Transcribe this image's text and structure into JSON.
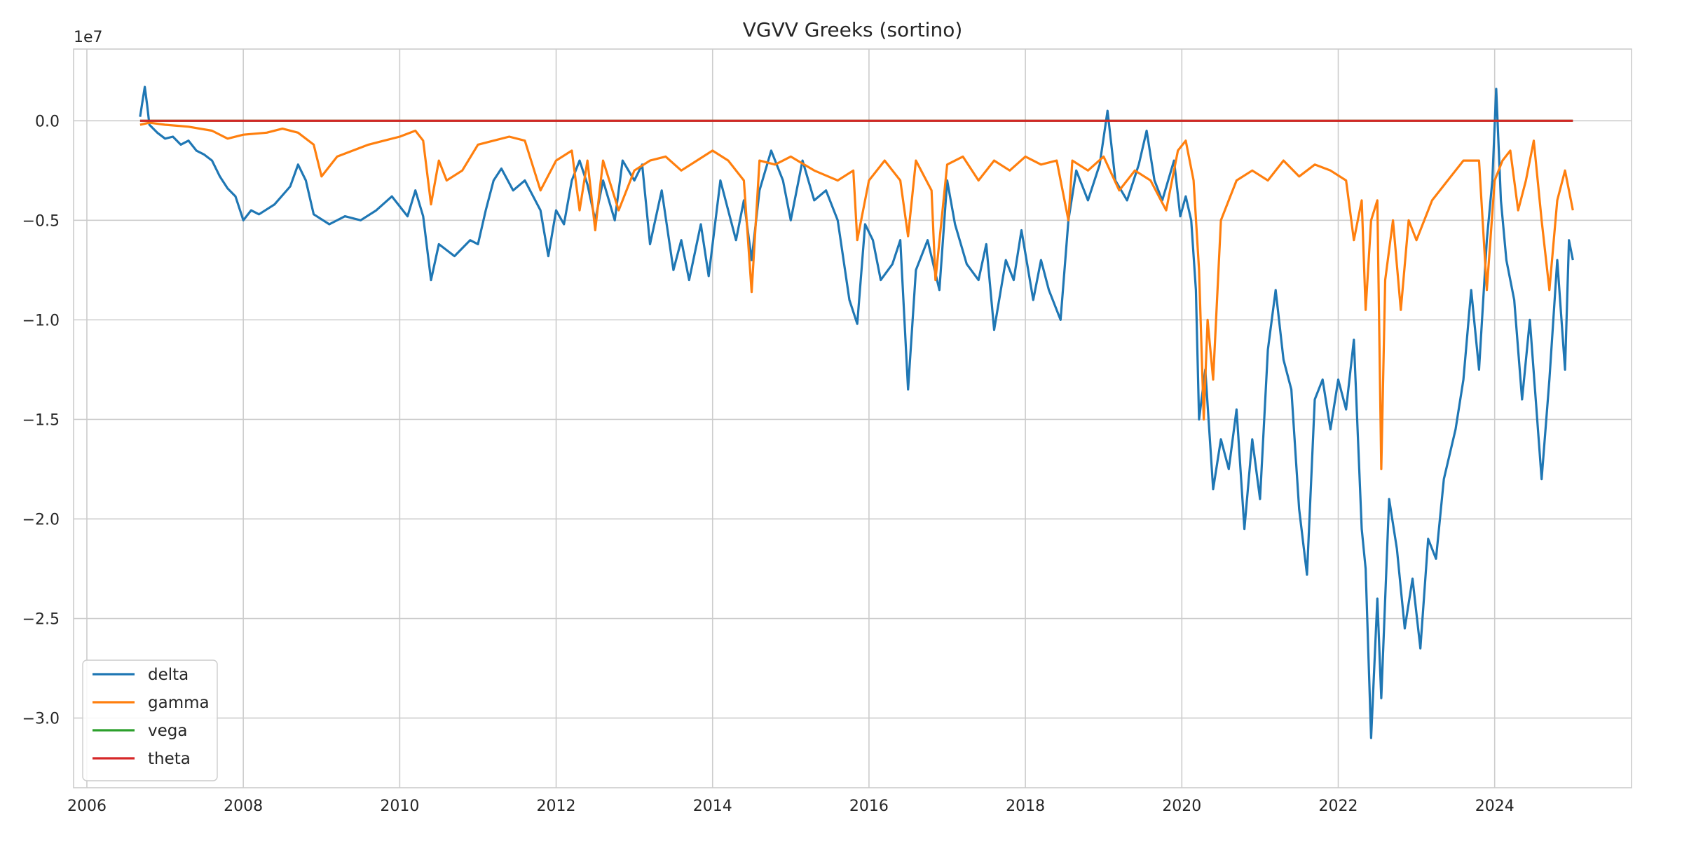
{
  "chart_data": {
    "type": "line",
    "title": "VGVV Greeks (sortino)",
    "xlabel": "",
    "ylabel": "",
    "y_scale_note": "1e7",
    "xlim": [
      2005.83,
      2025.75
    ],
    "ylim": [
      -3.35,
      0.36
    ],
    "x_ticks": [
      2006,
      2008,
      2010,
      2012,
      2014,
      2016,
      2018,
      2020,
      2022,
      2024
    ],
    "x_tick_labels": [
      "2006",
      "2008",
      "2010",
      "2012",
      "2014",
      "2016",
      "2018",
      "2020",
      "2022",
      "2024"
    ],
    "y_ticks": [
      0.0,
      -0.5,
      -1.0,
      -1.5,
      -2.0,
      -2.5,
      -3.0
    ],
    "y_tick_labels": [
      "0.0",
      "−0.5",
      "−1.0",
      "−1.5",
      "−2.0",
      "−2.5",
      "−3.0"
    ],
    "grid": true,
    "legend_position": "bottom-left",
    "series": [
      {
        "name": "delta",
        "color": "#1f77b4",
        "points": [
          [
            2006.68,
            0.02
          ],
          [
            2006.72,
            0.12
          ],
          [
            2006.74,
            0.17
          ],
          [
            2006.77,
            0.08
          ],
          [
            2006.8,
            -0.02
          ],
          [
            2006.9,
            -0.06
          ],
          [
            2007.0,
            -0.09
          ],
          [
            2007.1,
            -0.08
          ],
          [
            2007.2,
            -0.12
          ],
          [
            2007.3,
            -0.1
          ],
          [
            2007.4,
            -0.15
          ],
          [
            2007.5,
            -0.17
          ],
          [
            2007.6,
            -0.2
          ],
          [
            2007.7,
            -0.28
          ],
          [
            2007.8,
            -0.34
          ],
          [
            2007.9,
            -0.38
          ],
          [
            2008.0,
            -0.5
          ],
          [
            2008.1,
            -0.45
          ],
          [
            2008.2,
            -0.47
          ],
          [
            2008.4,
            -0.42
          ],
          [
            2008.6,
            -0.33
          ],
          [
            2008.7,
            -0.22
          ],
          [
            2008.8,
            -0.3
          ],
          [
            2008.9,
            -0.47
          ],
          [
            2009.1,
            -0.52
          ],
          [
            2009.3,
            -0.48
          ],
          [
            2009.5,
            -0.5
          ],
          [
            2009.7,
            -0.45
          ],
          [
            2009.9,
            -0.38
          ],
          [
            2010.1,
            -0.48
          ],
          [
            2010.2,
            -0.35
          ],
          [
            2010.3,
            -0.48
          ],
          [
            2010.4,
            -0.8
          ],
          [
            2010.5,
            -0.62
          ],
          [
            2010.7,
            -0.68
          ],
          [
            2010.9,
            -0.6
          ],
          [
            2011.0,
            -0.62
          ],
          [
            2011.1,
            -0.45
          ],
          [
            2011.2,
            -0.3
          ],
          [
            2011.3,
            -0.24
          ],
          [
            2011.45,
            -0.35
          ],
          [
            2011.6,
            -0.3
          ],
          [
            2011.8,
            -0.45
          ],
          [
            2011.9,
            -0.68
          ],
          [
            2012.0,
            -0.45
          ],
          [
            2012.1,
            -0.52
          ],
          [
            2012.2,
            -0.3
          ],
          [
            2012.3,
            -0.2
          ],
          [
            2012.4,
            -0.32
          ],
          [
            2012.5,
            -0.5
          ],
          [
            2012.6,
            -0.3
          ],
          [
            2012.75,
            -0.5
          ],
          [
            2012.85,
            -0.2
          ],
          [
            2013.0,
            -0.3
          ],
          [
            2013.1,
            -0.22
          ],
          [
            2013.2,
            -0.62
          ],
          [
            2013.35,
            -0.35
          ],
          [
            2013.5,
            -0.75
          ],
          [
            2013.6,
            -0.6
          ],
          [
            2013.7,
            -0.8
          ],
          [
            2013.85,
            -0.52
          ],
          [
            2013.95,
            -0.78
          ],
          [
            2014.1,
            -0.3
          ],
          [
            2014.3,
            -0.6
          ],
          [
            2014.4,
            -0.4
          ],
          [
            2014.5,
            -0.7
          ],
          [
            2014.6,
            -0.35
          ],
          [
            2014.75,
            -0.15
          ],
          [
            2014.9,
            -0.3
          ],
          [
            2015.0,
            -0.5
          ],
          [
            2015.15,
            -0.2
          ],
          [
            2015.3,
            -0.4
          ],
          [
            2015.45,
            -0.35
          ],
          [
            2015.6,
            -0.5
          ],
          [
            2015.75,
            -0.9
          ],
          [
            2015.85,
            -1.02
          ],
          [
            2015.95,
            -0.52
          ],
          [
            2016.05,
            -0.6
          ],
          [
            2016.15,
            -0.8
          ],
          [
            2016.3,
            -0.72
          ],
          [
            2016.4,
            -0.6
          ],
          [
            2016.5,
            -1.35
          ],
          [
            2016.6,
            -0.75
          ],
          [
            2016.75,
            -0.6
          ],
          [
            2016.9,
            -0.85
          ],
          [
            2017.0,
            -0.3
          ],
          [
            2017.1,
            -0.52
          ],
          [
            2017.25,
            -0.72
          ],
          [
            2017.4,
            -0.8
          ],
          [
            2017.5,
            -0.62
          ],
          [
            2017.6,
            -1.05
          ],
          [
            2017.75,
            -0.7
          ],
          [
            2017.85,
            -0.8
          ],
          [
            2017.95,
            -0.55
          ],
          [
            2018.1,
            -0.9
          ],
          [
            2018.2,
            -0.7
          ],
          [
            2018.3,
            -0.85
          ],
          [
            2018.45,
            -1.0
          ],
          [
            2018.55,
            -0.5
          ],
          [
            2018.65,
            -0.25
          ],
          [
            2018.8,
            -0.4
          ],
          [
            2018.95,
            -0.22
          ],
          [
            2019.05,
            0.05
          ],
          [
            2019.15,
            -0.3
          ],
          [
            2019.3,
            -0.4
          ],
          [
            2019.45,
            -0.22
          ],
          [
            2019.55,
            -0.05
          ],
          [
            2019.65,
            -0.3
          ],
          [
            2019.75,
            -0.4
          ],
          [
            2019.9,
            -0.2
          ],
          [
            2019.98,
            -0.48
          ],
          [
            2020.05,
            -0.38
          ],
          [
            2020.12,
            -0.5
          ],
          [
            2020.18,
            -0.85
          ],
          [
            2020.22,
            -1.5
          ],
          [
            2020.3,
            -1.25
          ],
          [
            2020.4,
            -1.85
          ],
          [
            2020.5,
            -1.6
          ],
          [
            2020.6,
            -1.75
          ],
          [
            2020.7,
            -1.45
          ],
          [
            2020.8,
            -2.05
          ],
          [
            2020.9,
            -1.6
          ],
          [
            2021.0,
            -1.9
          ],
          [
            2021.1,
            -1.15
          ],
          [
            2021.2,
            -0.85
          ],
          [
            2021.3,
            -1.2
          ],
          [
            2021.4,
            -1.35
          ],
          [
            2021.5,
            -1.95
          ],
          [
            2021.6,
            -2.28
          ],
          [
            2021.7,
            -1.4
          ],
          [
            2021.8,
            -1.3
          ],
          [
            2021.9,
            -1.55
          ],
          [
            2022.0,
            -1.3
          ],
          [
            2022.1,
            -1.45
          ],
          [
            2022.2,
            -1.1
          ],
          [
            2022.3,
            -2.05
          ],
          [
            2022.35,
            -2.25
          ],
          [
            2022.42,
            -3.1
          ],
          [
            2022.5,
            -2.4
          ],
          [
            2022.55,
            -2.9
          ],
          [
            2022.65,
            -1.9
          ],
          [
            2022.75,
            -2.15
          ],
          [
            2022.85,
            -2.55
          ],
          [
            2022.95,
            -2.3
          ],
          [
            2023.05,
            -2.65
          ],
          [
            2023.15,
            -2.1
          ],
          [
            2023.25,
            -2.2
          ],
          [
            2023.35,
            -1.8
          ],
          [
            2023.5,
            -1.55
          ],
          [
            2023.6,
            -1.3
          ],
          [
            2023.7,
            -0.85
          ],
          [
            2023.8,
            -1.25
          ],
          [
            2023.9,
            -0.6
          ],
          [
            2023.97,
            -0.3
          ],
          [
            2024.02,
            0.16
          ],
          [
            2024.08,
            -0.4
          ],
          [
            2024.15,
            -0.7
          ],
          [
            2024.25,
            -0.9
          ],
          [
            2024.35,
            -1.4
          ],
          [
            2024.45,
            -1.0
          ],
          [
            2024.6,
            -1.8
          ],
          [
            2024.7,
            -1.3
          ],
          [
            2024.8,
            -0.7
          ],
          [
            2024.9,
            -1.25
          ],
          [
            2024.95,
            -0.6
          ],
          [
            2025.0,
            -0.7
          ]
        ]
      },
      {
        "name": "gamma",
        "color": "#ff7f0e",
        "points": [
          [
            2006.68,
            -0.02
          ],
          [
            2006.8,
            -0.01
          ],
          [
            2007.0,
            -0.02
          ],
          [
            2007.3,
            -0.03
          ],
          [
            2007.6,
            -0.05
          ],
          [
            2007.8,
            -0.09
          ],
          [
            2008.0,
            -0.07
          ],
          [
            2008.3,
            -0.06
          ],
          [
            2008.5,
            -0.04
          ],
          [
            2008.7,
            -0.06
          ],
          [
            2008.9,
            -0.12
          ],
          [
            2009.0,
            -0.28
          ],
          [
            2009.2,
            -0.18
          ],
          [
            2009.4,
            -0.15
          ],
          [
            2009.6,
            -0.12
          ],
          [
            2009.8,
            -0.1
          ],
          [
            2010.0,
            -0.08
          ],
          [
            2010.2,
            -0.05
          ],
          [
            2010.3,
            -0.1
          ],
          [
            2010.4,
            -0.42
          ],
          [
            2010.5,
            -0.2
          ],
          [
            2010.6,
            -0.3
          ],
          [
            2010.8,
            -0.25
          ],
          [
            2011.0,
            -0.12
          ],
          [
            2011.2,
            -0.1
          ],
          [
            2011.4,
            -0.08
          ],
          [
            2011.6,
            -0.1
          ],
          [
            2011.8,
            -0.35
          ],
          [
            2012.0,
            -0.2
          ],
          [
            2012.2,
            -0.15
          ],
          [
            2012.3,
            -0.45
          ],
          [
            2012.4,
            -0.2
          ],
          [
            2012.5,
            -0.55
          ],
          [
            2012.6,
            -0.2
          ],
          [
            2012.8,
            -0.45
          ],
          [
            2013.0,
            -0.25
          ],
          [
            2013.2,
            -0.2
          ],
          [
            2013.4,
            -0.18
          ],
          [
            2013.6,
            -0.25
          ],
          [
            2013.8,
            -0.2
          ],
          [
            2014.0,
            -0.15
          ],
          [
            2014.2,
            -0.2
          ],
          [
            2014.4,
            -0.3
          ],
          [
            2014.5,
            -0.86
          ],
          [
            2014.6,
            -0.2
          ],
          [
            2014.8,
            -0.22
          ],
          [
            2015.0,
            -0.18
          ],
          [
            2015.3,
            -0.25
          ],
          [
            2015.6,
            -0.3
          ],
          [
            2015.8,
            -0.25
          ],
          [
            2015.85,
            -0.6
          ],
          [
            2016.0,
            -0.3
          ],
          [
            2016.2,
            -0.2
          ],
          [
            2016.4,
            -0.3
          ],
          [
            2016.5,
            -0.58
          ],
          [
            2016.6,
            -0.2
          ],
          [
            2016.8,
            -0.35
          ],
          [
            2016.85,
            -0.8
          ],
          [
            2017.0,
            -0.22
          ],
          [
            2017.2,
            -0.18
          ],
          [
            2017.4,
            -0.3
          ],
          [
            2017.6,
            -0.2
          ],
          [
            2017.8,
            -0.25
          ],
          [
            2018.0,
            -0.18
          ],
          [
            2018.2,
            -0.22
          ],
          [
            2018.4,
            -0.2
          ],
          [
            2018.55,
            -0.5
          ],
          [
            2018.6,
            -0.2
          ],
          [
            2018.8,
            -0.25
          ],
          [
            2019.0,
            -0.18
          ],
          [
            2019.2,
            -0.35
          ],
          [
            2019.4,
            -0.25
          ],
          [
            2019.6,
            -0.3
          ],
          [
            2019.8,
            -0.45
          ],
          [
            2019.95,
            -0.15
          ],
          [
            2020.05,
            -0.1
          ],
          [
            2020.15,
            -0.3
          ],
          [
            2020.22,
            -0.75
          ],
          [
            2020.28,
            -1.5
          ],
          [
            2020.33,
            -1.0
          ],
          [
            2020.4,
            -1.3
          ],
          [
            2020.5,
            -0.5
          ],
          [
            2020.7,
            -0.3
          ],
          [
            2020.9,
            -0.25
          ],
          [
            2021.1,
            -0.3
          ],
          [
            2021.3,
            -0.2
          ],
          [
            2021.5,
            -0.28
          ],
          [
            2021.7,
            -0.22
          ],
          [
            2021.9,
            -0.25
          ],
          [
            2022.1,
            -0.3
          ],
          [
            2022.2,
            -0.6
          ],
          [
            2022.3,
            -0.4
          ],
          [
            2022.35,
            -0.95
          ],
          [
            2022.42,
            -0.5
          ],
          [
            2022.5,
            -0.4
          ],
          [
            2022.55,
            -1.75
          ],
          [
            2022.6,
            -0.8
          ],
          [
            2022.7,
            -0.5
          ],
          [
            2022.8,
            -0.95
          ],
          [
            2022.9,
            -0.5
          ],
          [
            2023.0,
            -0.6
          ],
          [
            2023.2,
            -0.4
          ],
          [
            2023.4,
            -0.3
          ],
          [
            2023.6,
            -0.2
          ],
          [
            2023.8,
            -0.2
          ],
          [
            2023.9,
            -0.85
          ],
          [
            2024.0,
            -0.3
          ],
          [
            2024.1,
            -0.2
          ],
          [
            2024.2,
            -0.15
          ],
          [
            2024.3,
            -0.45
          ],
          [
            2024.4,
            -0.3
          ],
          [
            2024.5,
            -0.1
          ],
          [
            2024.6,
            -0.5
          ],
          [
            2024.7,
            -0.85
          ],
          [
            2024.8,
            -0.4
          ],
          [
            2024.9,
            -0.25
          ],
          [
            2025.0,
            -0.45
          ]
        ]
      },
      {
        "name": "vega",
        "color": "#2ca02c",
        "points": [
          [
            2006.68,
            0.0
          ],
          [
            2010.0,
            0.0
          ],
          [
            2015.0,
            0.0
          ],
          [
            2020.0,
            0.0
          ],
          [
            2025.0,
            0.0
          ]
        ]
      },
      {
        "name": "theta",
        "color": "#d62728",
        "points": [
          [
            2006.68,
            0.0
          ],
          [
            2010.0,
            0.0
          ],
          [
            2015.0,
            0.0
          ],
          [
            2020.0,
            0.0
          ],
          [
            2025.0,
            0.0
          ]
        ]
      }
    ]
  }
}
